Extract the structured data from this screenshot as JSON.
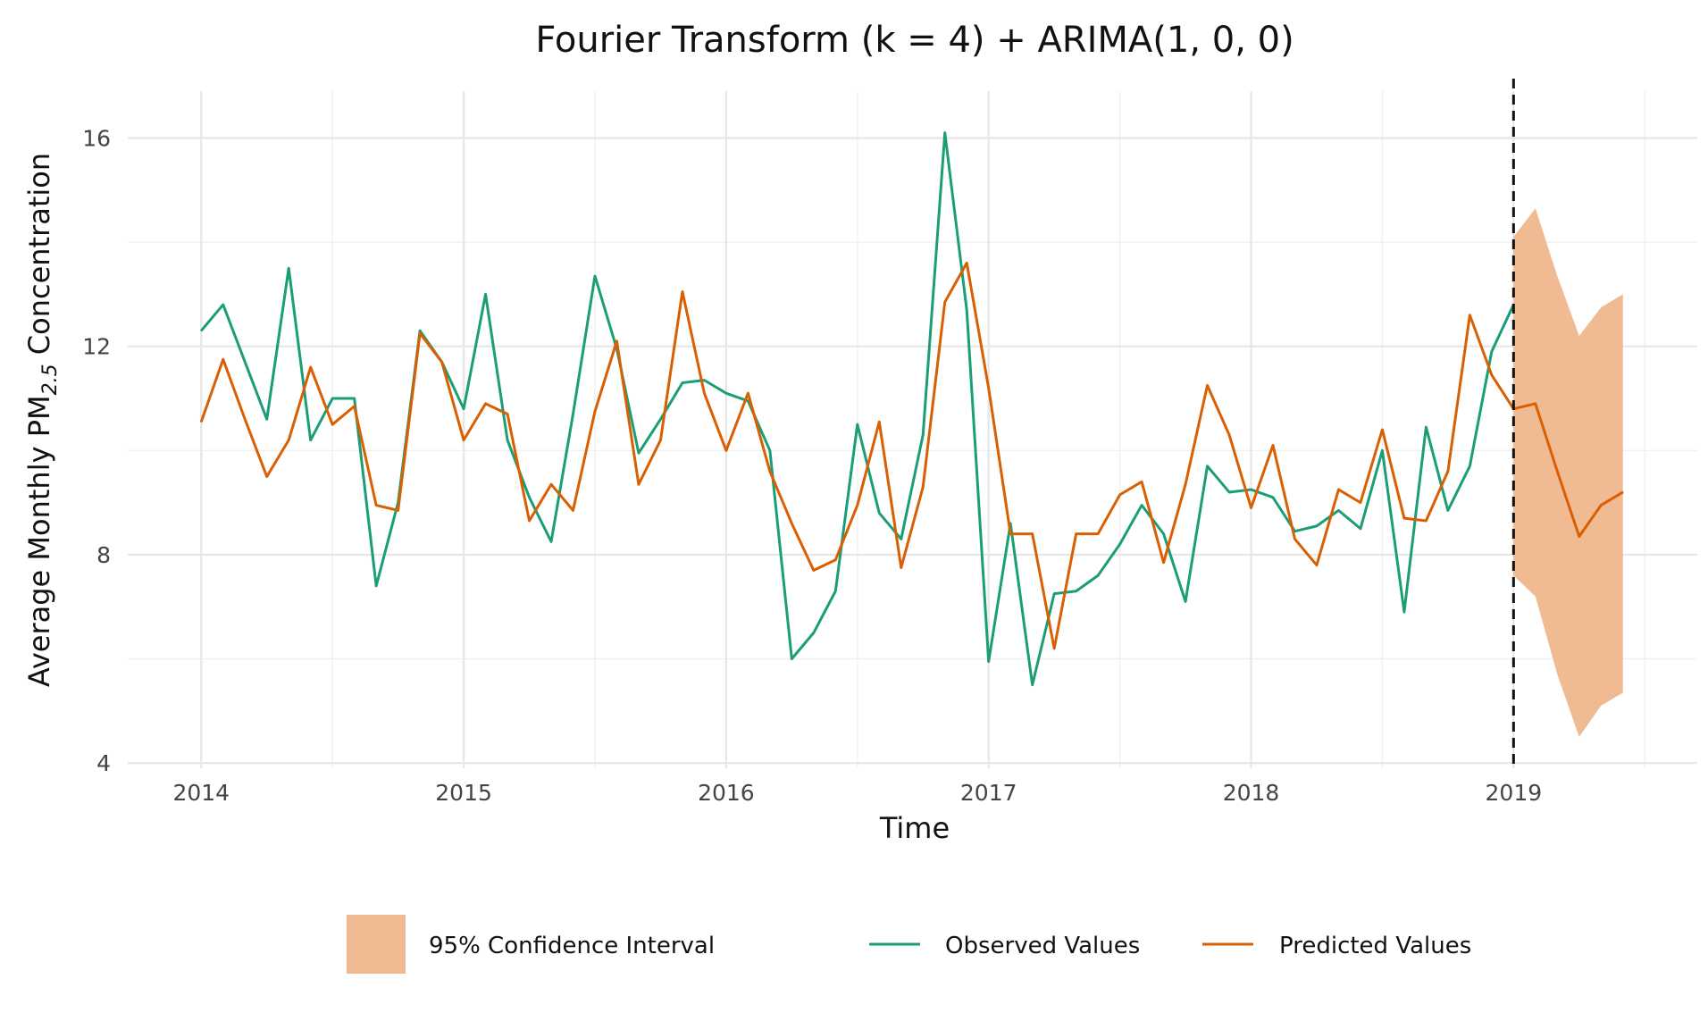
{
  "chart_data": {
    "type": "line",
    "title": "Fourier Transform (k = 4) + ARIMA(1, 0, 0)",
    "xlabel": "Time",
    "ylabel": {
      "prefix": "Average Monthly PM",
      "subscript": "2.5",
      "suffix": " Concentration"
    },
    "x_ticks": [
      2014,
      2015,
      2016,
      2017,
      2018,
      2019
    ],
    "y_ticks": [
      4,
      8,
      12,
      16
    ],
    "xlim": [
      2013.72,
      2019.7
    ],
    "ylim": [
      3.9,
      16.9
    ],
    "grid": true,
    "forecast_start": 2019.0,
    "legend_position": "bottom",
    "legend": {
      "ci_label": "95% Confidence Interval",
      "observed_label": "Observed Values",
      "predicted_label": "Predicted Values"
    },
    "colors": {
      "observed": "#1b9e77",
      "predicted": "#d95f02",
      "ci_fill": "#f0bb92",
      "vline": "#111111"
    },
    "series": [
      {
        "name": "Observed Values",
        "x_start": 2014.0,
        "step": 0.0833333,
        "values": [
          12.3,
          12.8,
          11.7,
          10.6,
          13.5,
          10.2,
          11.0,
          11.0,
          7.4,
          9.0,
          12.3,
          11.7,
          10.8,
          13.0,
          10.2,
          9.1,
          8.25,
          10.7,
          13.35,
          11.95,
          9.95,
          10.6,
          11.3,
          11.35,
          11.1,
          10.95,
          10.0,
          6.0,
          6.5,
          7.3,
          10.5,
          8.8,
          8.3,
          10.3,
          16.1,
          12.7,
          5.95,
          8.6,
          5.5,
          7.25,
          7.3,
          7.6,
          8.2,
          8.95,
          8.4,
          7.1,
          9.7,
          9.2,
          9.25,
          9.1,
          8.45,
          8.55,
          8.85,
          8.5,
          10.0,
          6.9,
          10.45,
          8.85,
          9.7,
          11.9,
          12.8
        ]
      },
      {
        "name": "Predicted Values",
        "x_start": 2014.0,
        "step": 0.0833333,
        "values": [
          10.55,
          11.75,
          10.6,
          9.5,
          10.2,
          11.6,
          10.5,
          10.85,
          8.95,
          8.85,
          12.25,
          11.7,
          10.2,
          10.9,
          10.7,
          8.65,
          9.35,
          8.85,
          10.75,
          12.1,
          9.35,
          10.2,
          13.05,
          11.1,
          10.0,
          11.1,
          9.6,
          8.6,
          7.7,
          7.9,
          8.95,
          10.55,
          7.75,
          9.3,
          12.85,
          13.6,
          11.2,
          8.4,
          8.4,
          6.2,
          8.4,
          8.4,
          9.15,
          9.4,
          7.85,
          9.35,
          11.25,
          10.3,
          8.9,
          10.1,
          8.3,
          7.8,
          9.25,
          9.0,
          10.4,
          8.7,
          8.65,
          9.6,
          12.6,
          11.45,
          10.8,
          10.9,
          9.6,
          8.35,
          8.95,
          9.2
        ]
      }
    ],
    "confidence_interval": {
      "x": [
        2019.0,
        2019.0833,
        2019.1667,
        2019.25,
        2019.3333,
        2019.4167
      ],
      "lower": [
        7.6,
        7.2,
        5.7,
        4.5,
        5.1,
        5.35
      ],
      "upper": [
        14.1,
        14.65,
        13.35,
        12.2,
        12.75,
        13.0
      ]
    }
  }
}
